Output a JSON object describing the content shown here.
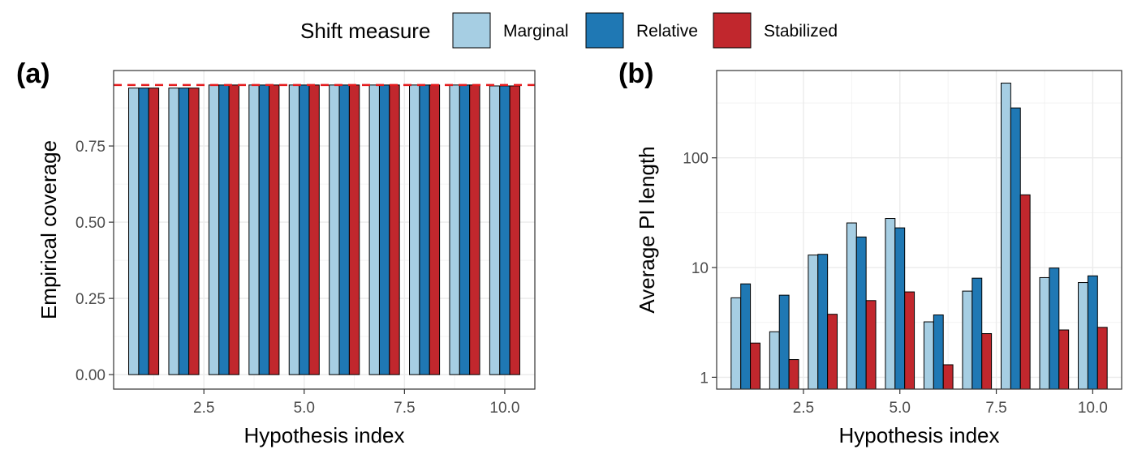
{
  "legend": {
    "title": "Shift measure",
    "entries": [
      {
        "name": "Marginal",
        "color": "#a6cee3"
      },
      {
        "name": "Relative",
        "color": "#1f78b4"
      },
      {
        "name": "Stabilized",
        "color": "#c1272d"
      }
    ]
  },
  "chart_data": [
    {
      "panel_label": "(a)",
      "type": "bar",
      "categories": [
        1,
        2,
        3,
        4,
        5,
        6,
        7,
        8,
        9,
        10
      ],
      "series": [
        {
          "name": "Marginal",
          "values": [
            0.94,
            0.94,
            0.95,
            0.95,
            0.95,
            0.95,
            0.95,
            0.95,
            0.95,
            0.947
          ]
        },
        {
          "name": "Relative",
          "values": [
            0.94,
            0.94,
            0.95,
            0.95,
            0.95,
            0.95,
            0.95,
            0.95,
            0.95,
            0.947
          ]
        },
        {
          "name": "Stabilized",
          "values": [
            0.94,
            0.94,
            0.95,
            0.95,
            0.95,
            0.95,
            0.95,
            0.95,
            0.95,
            0.947
          ]
        }
      ],
      "reference_line": {
        "y": 0.95,
        "style": "dashed",
        "color": "#e41a1c"
      },
      "xlabel": "Hypothesis index",
      "ylabel": "Empirical coverage",
      "xlim": [
        0.25,
        10.75
      ],
      "ylim": [
        -0.0475,
        0.9975
      ],
      "xticks": [
        2.5,
        5.0,
        7.5,
        10.0
      ],
      "xtick_labels": [
        "2.5",
        "5.0",
        "7.5",
        "10.0"
      ],
      "yticks": [
        0,
        0.25,
        0.5,
        0.75
      ],
      "ytick_labels": [
        "0.00",
        "0.25",
        "0.50",
        "0.75"
      ],
      "yscale": "linear",
      "grid": true
    },
    {
      "panel_label": "(b)",
      "type": "bar",
      "categories": [
        1,
        2,
        3,
        4,
        5,
        6,
        7,
        8,
        9,
        10
      ],
      "series": [
        {
          "name": "Marginal",
          "values": [
            5.3,
            2.6,
            13.0,
            25.5,
            28.0,
            3.2,
            6.1,
            480,
            8.1,
            7.3
          ]
        },
        {
          "name": "Relative",
          "values": [
            7.1,
            5.6,
            13.2,
            19.0,
            23.0,
            3.7,
            8.0,
            285,
            9.9,
            8.4
          ]
        },
        {
          "name": "Stabilized",
          "values": [
            2.05,
            1.45,
            3.75,
            5.0,
            6.0,
            1.3,
            2.5,
            46,
            2.7,
            2.85
          ]
        }
      ],
      "xlabel": "Hypothesis index",
      "ylabel": "Average PI length",
      "xlim": [
        0.25,
        10.75
      ],
      "ylim": [
        0.78,
        625
      ],
      "xticks": [
        2.5,
        5.0,
        7.5,
        10.0
      ],
      "xtick_labels": [
        "2.5",
        "5.0",
        "7.5",
        "10.0"
      ],
      "yticks": [
        1,
        10,
        100
      ],
      "ytick_labels": [
        "1",
        "10",
        "100"
      ],
      "yscale": "log10",
      "grid": true
    }
  ]
}
